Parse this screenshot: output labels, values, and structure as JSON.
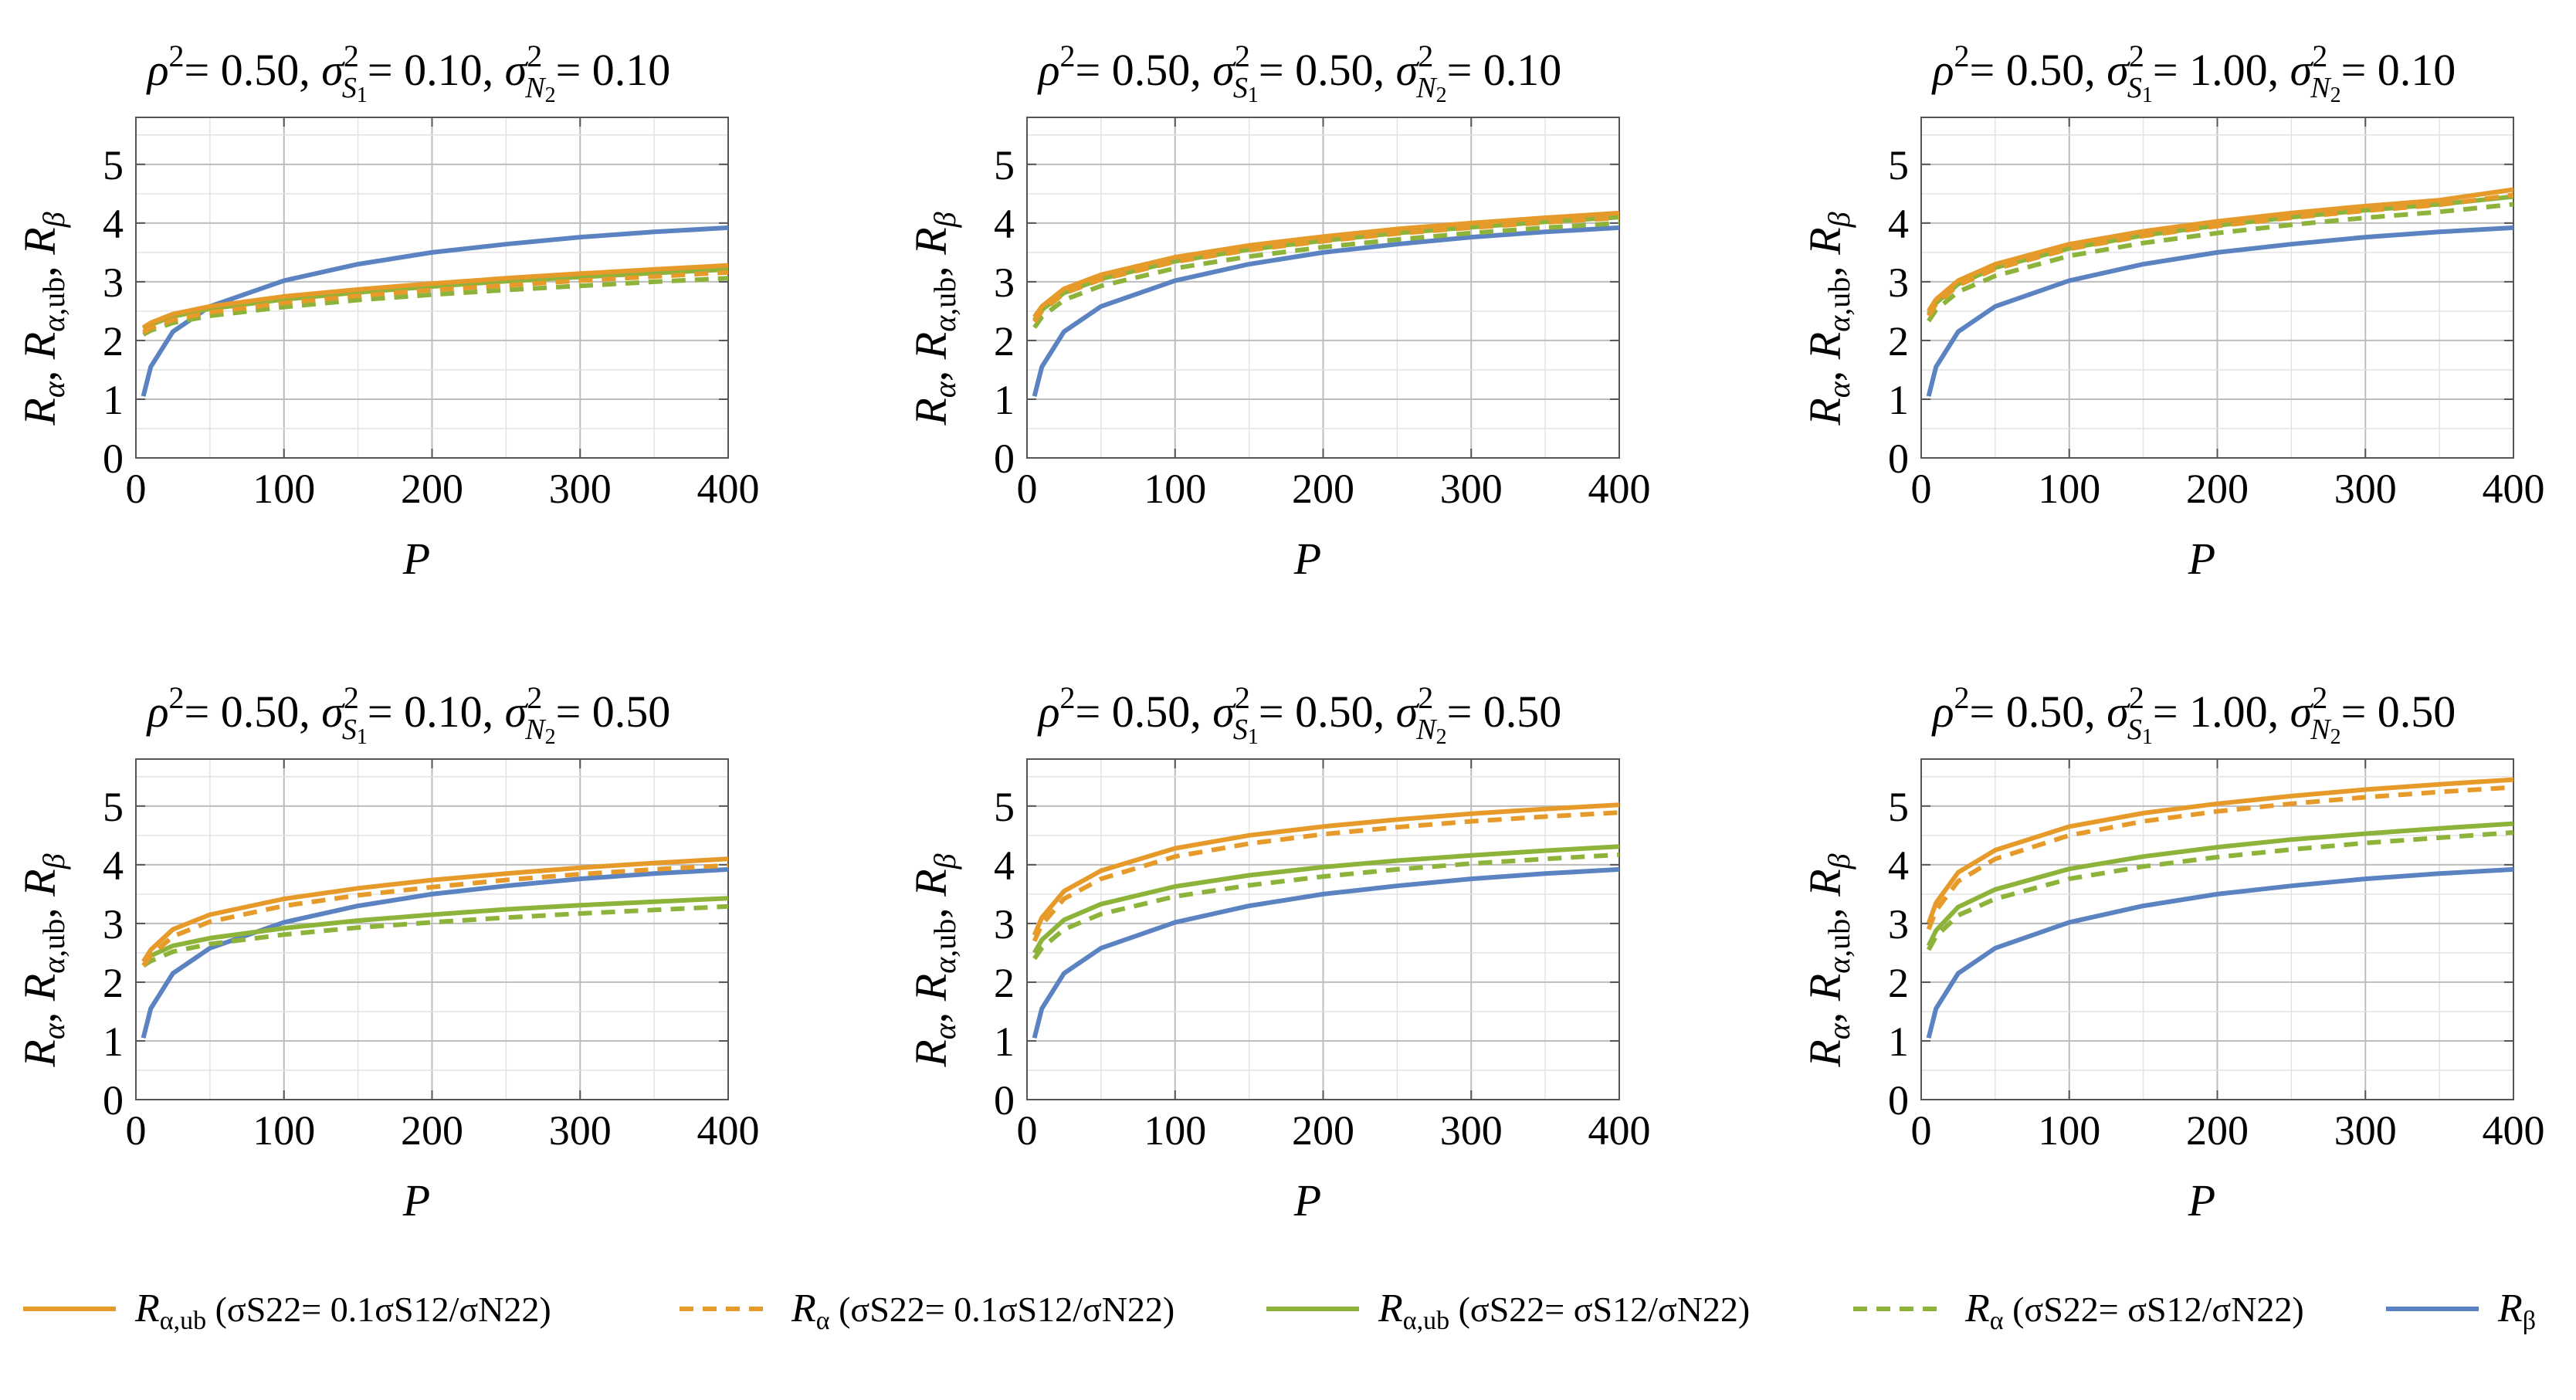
{
  "chart_data": [
    {
      "type": "line",
      "title": "ρ2= 0.50, σS12= 0.10, σN22= 0.10",
      "title_parts": {
        "rho2": "0.50",
        "sS1": "0.10",
        "sN2": "0.10"
      },
      "xlabel": "P",
      "ylabel": "Rα, Rα,ub, Rβ",
      "xlim": [
        0,
        400
      ],
      "ylim": [
        0,
        5.8
      ],
      "xticks": [
        "0",
        "100",
        "200",
        "300",
        "400"
      ],
      "yticks": [
        "0",
        "1",
        "2",
        "3",
        "4",
        "5"
      ],
      "grid": true,
      "x": [
        5,
        10,
        25,
        50,
        100,
        150,
        200,
        250,
        300,
        350,
        400
      ],
      "series": [
        {
          "name": "Rα,ub (σS22= 0.1σS12/σN22)",
          "color": "#e69a29",
          "dash": false,
          "values": [
            2.22,
            2.3,
            2.45,
            2.58,
            2.75,
            2.87,
            2.97,
            3.06,
            3.14,
            3.21,
            3.28
          ]
        },
        {
          "name": "Rα (σS22= 0.1σS12/σN22)",
          "color": "#e69a29",
          "dash": true,
          "values": [
            2.14,
            2.21,
            2.35,
            2.48,
            2.64,
            2.76,
            2.86,
            2.94,
            3.02,
            3.09,
            3.16
          ]
        },
        {
          "name": "Rα,ub (σS22= σS12/σN22)",
          "color": "#8db33a",
          "dash": false,
          "values": [
            2.2,
            2.27,
            2.41,
            2.54,
            2.7,
            2.82,
            2.92,
            3.01,
            3.08,
            3.15,
            3.21
          ]
        },
        {
          "name": "Rα  (σS22= σS12/σN22)",
          "color": "#8db33a",
          "dash": true,
          "values": [
            2.1,
            2.17,
            2.3,
            2.42,
            2.57,
            2.69,
            2.78,
            2.86,
            2.93,
            3.0,
            3.06
          ]
        },
        {
          "name": "Rβ",
          "color": "#5b83c2",
          "dash": false,
          "values": [
            1.05,
            1.55,
            2.15,
            2.58,
            3.02,
            3.3,
            3.5,
            3.64,
            3.76,
            3.85,
            3.92
          ]
        }
      ]
    },
    {
      "type": "line",
      "title": "ρ2= 0.50, σS12= 0.50, σN22= 0.10",
      "title_parts": {
        "rho2": "0.50",
        "sS1": "0.50",
        "sN2": "0.10"
      },
      "xlabel": "P",
      "ylabel": "Rα, Rα,ub, Rβ",
      "xlim": [
        0,
        400
      ],
      "ylim": [
        0,
        5.8
      ],
      "xticks": [
        "0",
        "100",
        "200",
        "300",
        "400"
      ],
      "yticks": [
        "0",
        "1",
        "2",
        "3",
        "4",
        "5"
      ],
      "grid": true,
      "x": [
        5,
        10,
        25,
        50,
        100,
        150,
        200,
        250,
        300,
        350,
        400
      ],
      "series": [
        {
          "name": "Rα,ub (σS22= 0.1σS12/σN22)",
          "color": "#e69a29",
          "dash": false,
          "values": [
            2.4,
            2.58,
            2.88,
            3.12,
            3.42,
            3.62,
            3.77,
            3.9,
            4.0,
            4.09,
            4.17
          ]
        },
        {
          "name": "Rα (σS22= 0.1σS12/σN22)",
          "color": "#e69a29",
          "dash": true,
          "values": [
            2.32,
            2.5,
            2.8,
            3.04,
            3.34,
            3.54,
            3.69,
            3.82,
            3.92,
            4.01,
            4.09
          ]
        },
        {
          "name": "Rα,ub (σS22= σS12/σN22)",
          "color": "#8db33a",
          "dash": false,
          "values": [
            2.35,
            2.52,
            2.81,
            3.05,
            3.35,
            3.55,
            3.7,
            3.83,
            3.93,
            4.02,
            4.1
          ]
        },
        {
          "name": "Rα  (σS22= σS12/σN22)",
          "color": "#8db33a",
          "dash": true,
          "values": [
            2.22,
            2.4,
            2.69,
            2.93,
            3.23,
            3.43,
            3.59,
            3.72,
            3.83,
            3.92,
            4.0
          ]
        },
        {
          "name": "Rβ",
          "color": "#5b83c2",
          "dash": false,
          "values": [
            1.05,
            1.55,
            2.15,
            2.58,
            3.02,
            3.3,
            3.5,
            3.64,
            3.76,
            3.85,
            3.92
          ]
        }
      ]
    },
    {
      "type": "line",
      "title": "ρ2= 0.50, σS12= 1.00, σN22= 0.10",
      "title_parts": {
        "rho2": "0.50",
        "sS1": "1.00",
        "sN2": "0.10"
      },
      "xlabel": "P",
      "ylabel": "Rα, Rα,ub, Rβ",
      "xlim": [
        0,
        400
      ],
      "ylim": [
        0,
        5.8
      ],
      "xticks": [
        "0",
        "100",
        "200",
        "300",
        "400"
      ],
      "yticks": [
        "0",
        "1",
        "2",
        "3",
        "4",
        "5"
      ],
      "grid": true,
      "x": [
        5,
        10,
        25,
        50,
        100,
        150,
        200,
        250,
        300,
        350,
        400
      ],
      "series": [
        {
          "name": "Rα,ub (σS22= 0.1σS12/σN22)",
          "color": "#e69a29",
          "dash": false,
          "values": [
            2.5,
            2.7,
            3.02,
            3.3,
            3.64,
            3.86,
            4.03,
            4.17,
            4.29,
            4.39,
            4.57
          ]
        },
        {
          "name": "Rα (σS22= 0.1σS12/σN22)",
          "color": "#e69a29",
          "dash": true,
          "values": [
            2.42,
            2.62,
            2.94,
            3.22,
            3.56,
            3.78,
            3.95,
            4.09,
            4.21,
            4.31,
            4.48
          ]
        },
        {
          "name": "Rα,ub (σS22= σS12/σN22)",
          "color": "#8db33a",
          "dash": false,
          "values": [
            2.45,
            2.64,
            2.96,
            3.24,
            3.57,
            3.79,
            3.96,
            4.1,
            4.22,
            4.32,
            4.45
          ]
        },
        {
          "name": "Rα  (σS22= σS12/σN22)",
          "color": "#8db33a",
          "dash": true,
          "values": [
            2.33,
            2.52,
            2.83,
            3.1,
            3.44,
            3.66,
            3.83,
            3.97,
            4.09,
            4.19,
            4.32
          ]
        },
        {
          "name": "Rβ",
          "color": "#5b83c2",
          "dash": false,
          "values": [
            1.05,
            1.55,
            2.15,
            2.58,
            3.02,
            3.3,
            3.5,
            3.64,
            3.76,
            3.85,
            3.92
          ]
        }
      ]
    },
    {
      "type": "line",
      "title": "ρ2= 0.50, σS12= 0.10, σN22= 0.50",
      "title_parts": {
        "rho2": "0.50",
        "sS1": "0.10",
        "sN2": "0.50"
      },
      "xlabel": "P",
      "ylabel": "Rα, Rα,ub, Rβ",
      "xlim": [
        0,
        400
      ],
      "ylim": [
        0,
        5.8
      ],
      "xticks": [
        "0",
        "100",
        "200",
        "300",
        "400"
      ],
      "yticks": [
        "0",
        "1",
        "2",
        "3",
        "4",
        "5"
      ],
      "grid": true,
      "x": [
        5,
        10,
        25,
        50,
        100,
        150,
        200,
        250,
        300,
        350,
        400
      ],
      "series": [
        {
          "name": "Rα,ub (σS22= 0.1σS12/σN22)",
          "color": "#e69a29",
          "dash": false,
          "values": [
            2.35,
            2.55,
            2.9,
            3.15,
            3.42,
            3.6,
            3.74,
            3.85,
            3.95,
            4.03,
            4.1
          ]
        },
        {
          "name": "Rα (σS22= 0.1σS12/σN22)",
          "color": "#e69a29",
          "dash": true,
          "values": [
            2.28,
            2.45,
            2.78,
            3.03,
            3.3,
            3.48,
            3.62,
            3.74,
            3.84,
            3.92,
            3.99
          ]
        },
        {
          "name": "Rα,ub (σS22= σS12/σN22)",
          "color": "#8db33a",
          "dash": false,
          "values": [
            2.35,
            2.45,
            2.62,
            2.75,
            2.92,
            3.05,
            3.15,
            3.24,
            3.31,
            3.37,
            3.43
          ]
        },
        {
          "name": "Rα  (σS22= σS12/σN22)",
          "color": "#8db33a",
          "dash": true,
          "values": [
            2.28,
            2.36,
            2.52,
            2.65,
            2.81,
            2.93,
            3.02,
            3.1,
            3.17,
            3.23,
            3.29
          ]
        },
        {
          "name": "Rβ",
          "color": "#5b83c2",
          "dash": false,
          "values": [
            1.05,
            1.55,
            2.15,
            2.58,
            3.02,
            3.3,
            3.5,
            3.64,
            3.76,
            3.85,
            3.92
          ]
        }
      ]
    },
    {
      "type": "line",
      "title": "ρ2= 0.50, σS12= 0.50, σN22= 0.50",
      "title_parts": {
        "rho2": "0.50",
        "sS1": "0.50",
        "sN2": "0.50"
      },
      "xlabel": "P",
      "ylabel": "Rα, Rα,ub, Rβ",
      "xlim": [
        0,
        400
      ],
      "ylim": [
        0,
        5.8
      ],
      "xticks": [
        "0",
        "100",
        "200",
        "300",
        "400"
      ],
      "yticks": [
        "0",
        "1",
        "2",
        "3",
        "4",
        "5"
      ],
      "grid": true,
      "x": [
        5,
        10,
        25,
        50,
        100,
        150,
        200,
        250,
        300,
        350,
        400
      ],
      "series": [
        {
          "name": "Rα,ub (σS22= 0.1σS12/σN22)",
          "color": "#e69a29",
          "dash": false,
          "values": [
            2.8,
            3.1,
            3.55,
            3.9,
            4.28,
            4.5,
            4.65,
            4.77,
            4.87,
            4.95,
            5.02
          ]
        },
        {
          "name": "Rα (σS22= 0.1σS12/σN22)",
          "color": "#e69a29",
          "dash": true,
          "values": [
            2.7,
            2.98,
            3.42,
            3.76,
            4.14,
            4.36,
            4.52,
            4.64,
            4.74,
            4.82,
            4.89
          ]
        },
        {
          "name": "Rα,ub (σS22= σS12/σN22)",
          "color": "#8db33a",
          "dash": false,
          "values": [
            2.5,
            2.72,
            3.06,
            3.33,
            3.63,
            3.82,
            3.96,
            4.07,
            4.16,
            4.24,
            4.31
          ]
        },
        {
          "name": "Rα  (σS22= σS12/σN22)",
          "color": "#8db33a",
          "dash": true,
          "values": [
            2.4,
            2.58,
            2.9,
            3.16,
            3.46,
            3.65,
            3.8,
            3.92,
            4.02,
            4.1,
            4.17
          ]
        },
        {
          "name": "Rβ",
          "color": "#5b83c2",
          "dash": false,
          "values": [
            1.05,
            1.55,
            2.15,
            2.58,
            3.02,
            3.3,
            3.5,
            3.64,
            3.76,
            3.85,
            3.92
          ]
        }
      ]
    },
    {
      "type": "line",
      "title": "ρ2= 0.50, σS12= 1.00, σN22= 0.50",
      "title_parts": {
        "rho2": "0.50",
        "sS1": "1.00",
        "sN2": "0.50"
      },
      "xlabel": "P",
      "ylabel": "Rα, Rα,ub, Rβ",
      "xlim": [
        0,
        400
      ],
      "ylim": [
        0,
        5.8
      ],
      "xticks": [
        "0",
        "100",
        "200",
        "300",
        "400"
      ],
      "yticks": [
        "0",
        "1",
        "2",
        "3",
        "4",
        "5"
      ],
      "grid": true,
      "x": [
        5,
        10,
        25,
        50,
        100,
        150,
        200,
        250,
        300,
        350,
        400
      ],
      "series": [
        {
          "name": "Rα,ub (σS22= 0.1σS12/σN22)",
          "color": "#e69a29",
          "dash": false,
          "values": [
            3.0,
            3.35,
            3.87,
            4.25,
            4.65,
            4.88,
            5.04,
            5.17,
            5.28,
            5.37,
            5.45
          ]
        },
        {
          "name": "Rα (σS22= 0.1σS12/σN22)",
          "color": "#e69a29",
          "dash": true,
          "values": [
            2.9,
            3.22,
            3.72,
            4.1,
            4.5,
            4.74,
            4.91,
            5.04,
            5.15,
            5.24,
            5.32
          ]
        },
        {
          "name": "Rα,ub (σS22= σS12/σN22)",
          "color": "#8db33a",
          "dash": false,
          "values": [
            2.62,
            2.88,
            3.28,
            3.58,
            3.93,
            4.14,
            4.3,
            4.43,
            4.53,
            4.62,
            4.7
          ]
        },
        {
          "name": "Rα  (σS22= σS12/σN22)",
          "color": "#8db33a",
          "dash": true,
          "values": [
            2.55,
            2.78,
            3.14,
            3.42,
            3.76,
            3.97,
            4.13,
            4.26,
            4.37,
            4.46,
            4.55
          ]
        },
        {
          "name": "Rβ",
          "color": "#5b83c2",
          "dash": false,
          "values": [
            1.05,
            1.55,
            2.15,
            2.58,
            3.02,
            3.3,
            3.5,
            3.64,
            3.76,
            3.85,
            3.92
          ]
        }
      ]
    }
  ],
  "legend": [
    {
      "sym": "R",
      "sub": "α,ub",
      "paren": "(σS22= 0.1σS12/σN22)",
      "color": "#e69a29",
      "dash": false
    },
    {
      "sym": "R",
      "sub": "α",
      "paren": "(σS22= 0.1σS12/σN22)",
      "color": "#e69a29",
      "dash": true
    },
    {
      "sym": "R",
      "sub": "α,ub",
      "paren": "(σS22= σS12/σN22)",
      "color": "#8db33a",
      "dash": false
    },
    {
      "sym": "R",
      "sub": "α",
      "paren": "(σS22= σS12/σN22)",
      "color": "#8db33a",
      "dash": true
    },
    {
      "sym": "R",
      "sub": "β",
      "paren": "",
      "color": "#5b83c2",
      "dash": false
    }
  ]
}
